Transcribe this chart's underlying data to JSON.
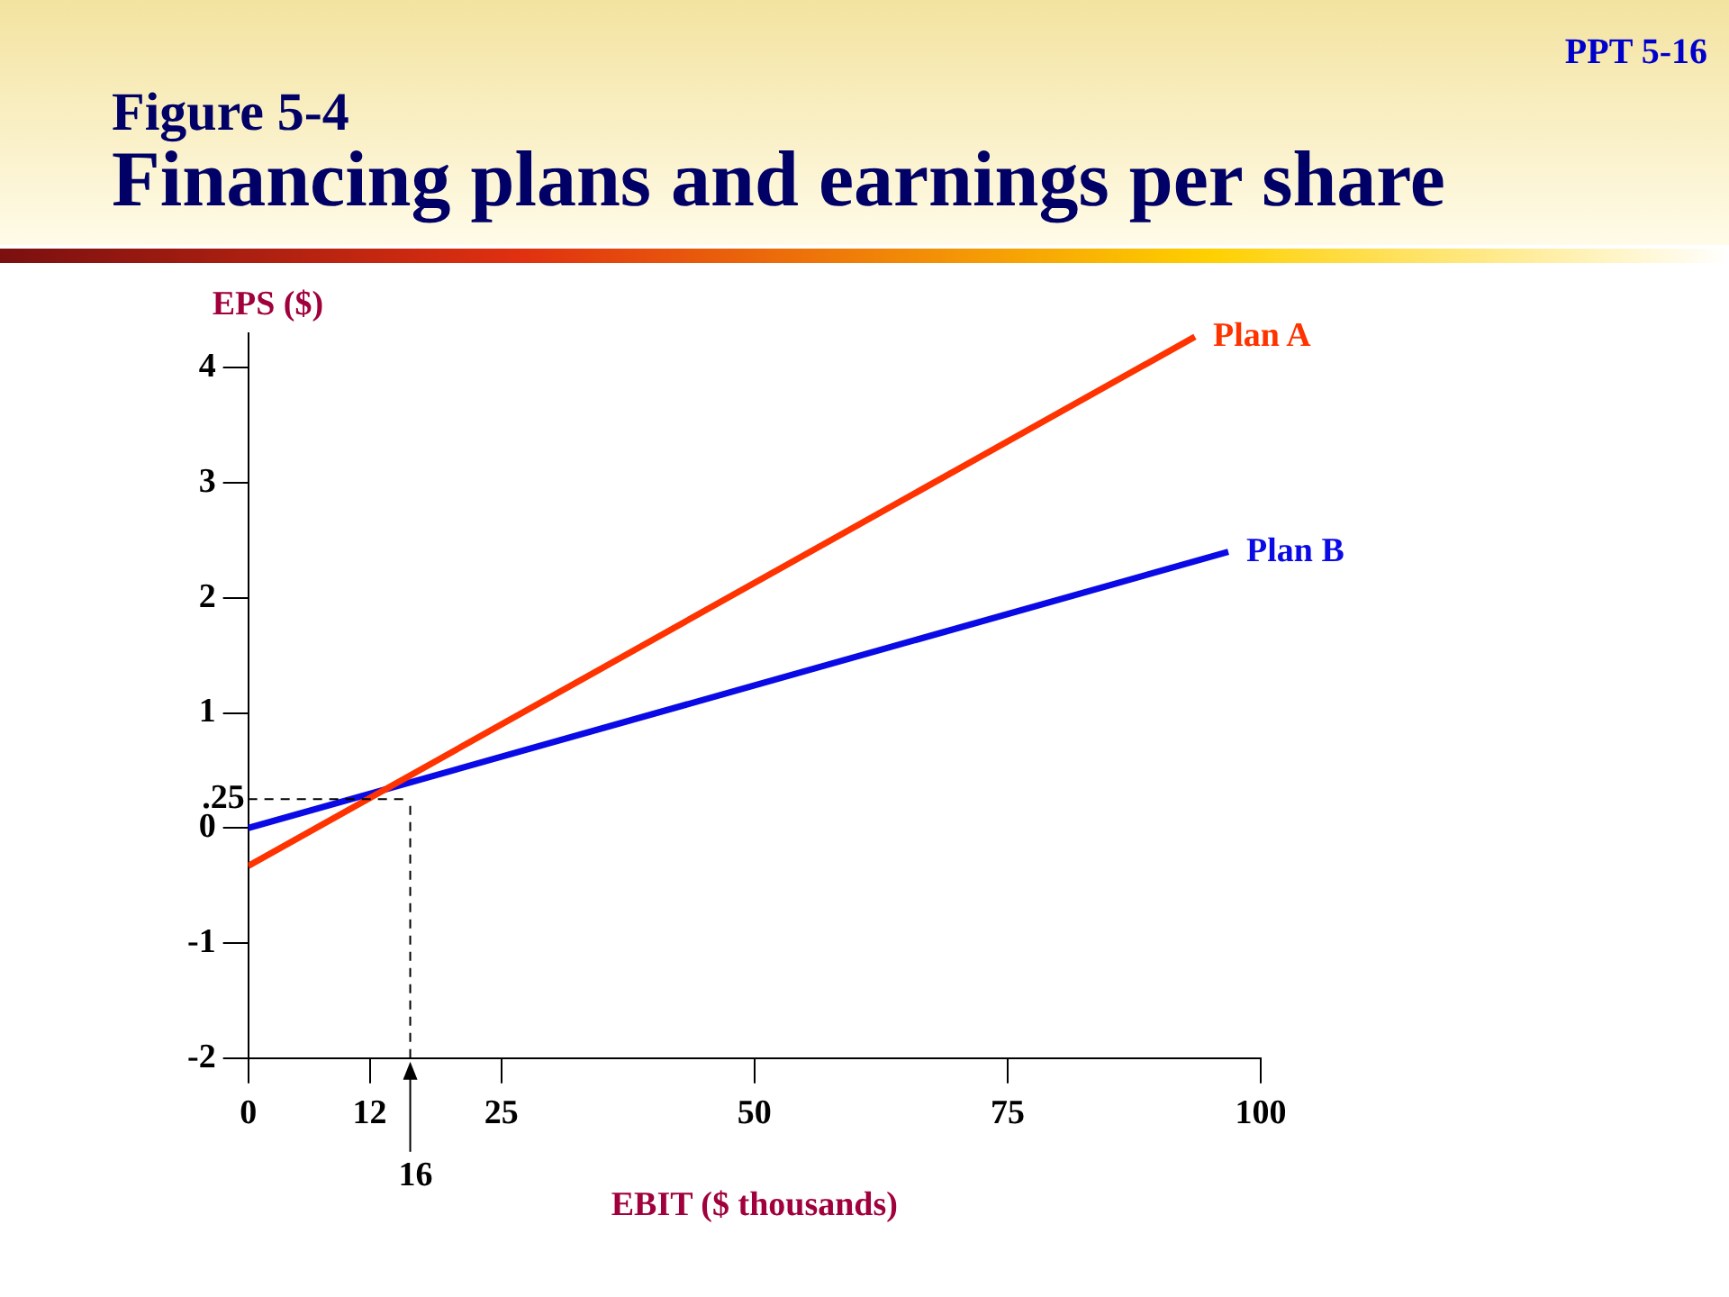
{
  "chart_data": {
    "type": "line",
    "subtitle": "Figure 5-4",
    "title": "Financing plans and earnings per share",
    "xlabel": "EBIT ($ thousands)",
    "ylabel": "EPS ($)",
    "annotations": [
      "PPT 5-16"
    ],
    "xlim": [
      0,
      100
    ],
    "xticks": [
      0,
      12,
      25,
      50,
      75,
      100
    ],
    "ylim": [
      -2,
      4.3
    ],
    "yticks": [
      -2,
      -1,
      0,
      1,
      2,
      3,
      4
    ],
    "series": [
      {
        "name": "Plan A",
        "color": "#ff3300",
        "x": [
          0,
          93.5
        ],
        "values": [
          -0.33,
          4.27
        ]
      },
      {
        "name": "Plan B",
        "color": "#0a0ae6",
        "x": [
          0,
          96.8
        ],
        "values": [
          0,
          2.4
        ]
      }
    ],
    "ref_lines": [
      {
        "axis": "y",
        "value": 0.25,
        "label": ".25",
        "color": "#000000",
        "line_style": "dashed"
      },
      {
        "axis": "x",
        "value": 16,
        "label": "16",
        "color": "#000000",
        "line_style": "dashed"
      }
    ],
    "grid": false,
    "legend": false,
    "marker": "none",
    "line_style": "solid"
  }
}
